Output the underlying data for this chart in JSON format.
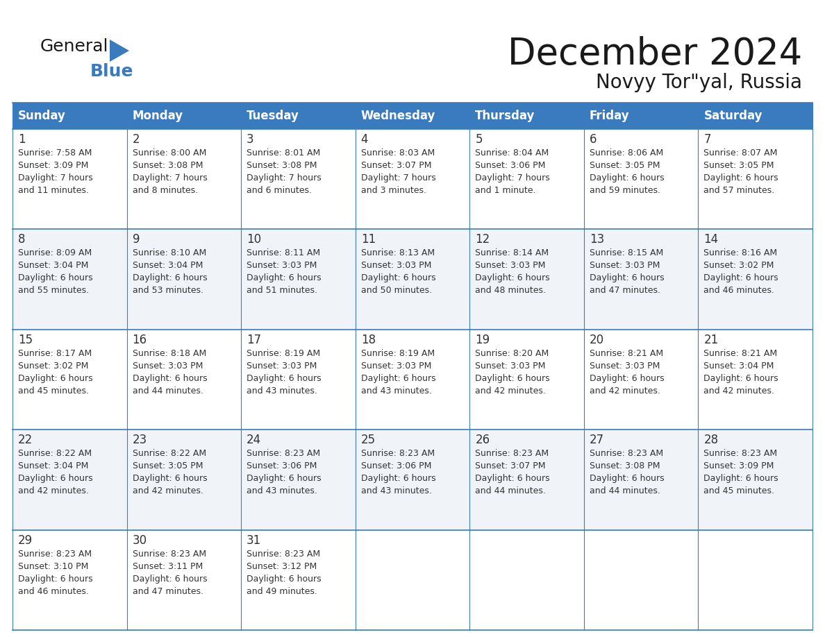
{
  "title": "December 2024",
  "subtitle": "Novyy Tor\"yal, Russia",
  "header_color": "#3a7abf",
  "header_text_color": "#ffffff",
  "cell_bg_color": "#ffffff",
  "cell_alt_bg": "#f0f4f8",
  "border_color": "#3a7abf",
  "text_color": "#333333",
  "days_of_week": [
    "Sunday",
    "Monday",
    "Tuesday",
    "Wednesday",
    "Thursday",
    "Friday",
    "Saturday"
  ],
  "calendar_data": [
    [
      {
        "day": "1",
        "sunrise": "7:58 AM",
        "sunset": "3:09 PM",
        "daylight_line1": "Daylight: 7 hours",
        "daylight_line2": "and 11 minutes."
      },
      {
        "day": "2",
        "sunrise": "8:00 AM",
        "sunset": "3:08 PM",
        "daylight_line1": "Daylight: 7 hours",
        "daylight_line2": "and 8 minutes."
      },
      {
        "day": "3",
        "sunrise": "8:01 AM",
        "sunset": "3:08 PM",
        "daylight_line1": "Daylight: 7 hours",
        "daylight_line2": "and 6 minutes."
      },
      {
        "day": "4",
        "sunrise": "8:03 AM",
        "sunset": "3:07 PM",
        "daylight_line1": "Daylight: 7 hours",
        "daylight_line2": "and 3 minutes."
      },
      {
        "day": "5",
        "sunrise": "8:04 AM",
        "sunset": "3:06 PM",
        "daylight_line1": "Daylight: 7 hours",
        "daylight_line2": "and 1 minute."
      },
      {
        "day": "6",
        "sunrise": "8:06 AM",
        "sunset": "3:05 PM",
        "daylight_line1": "Daylight: 6 hours",
        "daylight_line2": "and 59 minutes."
      },
      {
        "day": "7",
        "sunrise": "8:07 AM",
        "sunset": "3:05 PM",
        "daylight_line1": "Daylight: 6 hours",
        "daylight_line2": "and 57 minutes."
      }
    ],
    [
      {
        "day": "8",
        "sunrise": "8:09 AM",
        "sunset": "3:04 PM",
        "daylight_line1": "Daylight: 6 hours",
        "daylight_line2": "and 55 minutes."
      },
      {
        "day": "9",
        "sunrise": "8:10 AM",
        "sunset": "3:04 PM",
        "daylight_line1": "Daylight: 6 hours",
        "daylight_line2": "and 53 minutes."
      },
      {
        "day": "10",
        "sunrise": "8:11 AM",
        "sunset": "3:03 PM",
        "daylight_line1": "Daylight: 6 hours",
        "daylight_line2": "and 51 minutes."
      },
      {
        "day": "11",
        "sunrise": "8:13 AM",
        "sunset": "3:03 PM",
        "daylight_line1": "Daylight: 6 hours",
        "daylight_line2": "and 50 minutes."
      },
      {
        "day": "12",
        "sunrise": "8:14 AM",
        "sunset": "3:03 PM",
        "daylight_line1": "Daylight: 6 hours",
        "daylight_line2": "and 48 minutes."
      },
      {
        "day": "13",
        "sunrise": "8:15 AM",
        "sunset": "3:03 PM",
        "daylight_line1": "Daylight: 6 hours",
        "daylight_line2": "and 47 minutes."
      },
      {
        "day": "14",
        "sunrise": "8:16 AM",
        "sunset": "3:02 PM",
        "daylight_line1": "Daylight: 6 hours",
        "daylight_line2": "and 46 minutes."
      }
    ],
    [
      {
        "day": "15",
        "sunrise": "8:17 AM",
        "sunset": "3:02 PM",
        "daylight_line1": "Daylight: 6 hours",
        "daylight_line2": "and 45 minutes."
      },
      {
        "day": "16",
        "sunrise": "8:18 AM",
        "sunset": "3:03 PM",
        "daylight_line1": "Daylight: 6 hours",
        "daylight_line2": "and 44 minutes."
      },
      {
        "day": "17",
        "sunrise": "8:19 AM",
        "sunset": "3:03 PM",
        "daylight_line1": "Daylight: 6 hours",
        "daylight_line2": "and 43 minutes."
      },
      {
        "day": "18",
        "sunrise": "8:19 AM",
        "sunset": "3:03 PM",
        "daylight_line1": "Daylight: 6 hours",
        "daylight_line2": "and 43 minutes."
      },
      {
        "day": "19",
        "sunrise": "8:20 AM",
        "sunset": "3:03 PM",
        "daylight_line1": "Daylight: 6 hours",
        "daylight_line2": "and 42 minutes."
      },
      {
        "day": "20",
        "sunrise": "8:21 AM",
        "sunset": "3:03 PM",
        "daylight_line1": "Daylight: 6 hours",
        "daylight_line2": "and 42 minutes."
      },
      {
        "day": "21",
        "sunrise": "8:21 AM",
        "sunset": "3:04 PM",
        "daylight_line1": "Daylight: 6 hours",
        "daylight_line2": "and 42 minutes."
      }
    ],
    [
      {
        "day": "22",
        "sunrise": "8:22 AM",
        "sunset": "3:04 PM",
        "daylight_line1": "Daylight: 6 hours",
        "daylight_line2": "and 42 minutes."
      },
      {
        "day": "23",
        "sunrise": "8:22 AM",
        "sunset": "3:05 PM",
        "daylight_line1": "Daylight: 6 hours",
        "daylight_line2": "and 42 minutes."
      },
      {
        "day": "24",
        "sunrise": "8:23 AM",
        "sunset": "3:06 PM",
        "daylight_line1": "Daylight: 6 hours",
        "daylight_line2": "and 43 minutes."
      },
      {
        "day": "25",
        "sunrise": "8:23 AM",
        "sunset": "3:06 PM",
        "daylight_line1": "Daylight: 6 hours",
        "daylight_line2": "and 43 minutes."
      },
      {
        "day": "26",
        "sunrise": "8:23 AM",
        "sunset": "3:07 PM",
        "daylight_line1": "Daylight: 6 hours",
        "daylight_line2": "and 44 minutes."
      },
      {
        "day": "27",
        "sunrise": "8:23 AM",
        "sunset": "3:08 PM",
        "daylight_line1": "Daylight: 6 hours",
        "daylight_line2": "and 44 minutes."
      },
      {
        "day": "28",
        "sunrise": "8:23 AM",
        "sunset": "3:09 PM",
        "daylight_line1": "Daylight: 6 hours",
        "daylight_line2": "and 45 minutes."
      }
    ],
    [
      {
        "day": "29",
        "sunrise": "8:23 AM",
        "sunset": "3:10 PM",
        "daylight_line1": "Daylight: 6 hours",
        "daylight_line2": "and 46 minutes."
      },
      {
        "day": "30",
        "sunrise": "8:23 AM",
        "sunset": "3:11 PM",
        "daylight_line1": "Daylight: 6 hours",
        "daylight_line2": "and 47 minutes."
      },
      {
        "day": "31",
        "sunrise": "8:23 AM",
        "sunset": "3:12 PM",
        "daylight_line1": "Daylight: 6 hours",
        "daylight_line2": "and 49 minutes."
      },
      null,
      null,
      null,
      null
    ]
  ]
}
